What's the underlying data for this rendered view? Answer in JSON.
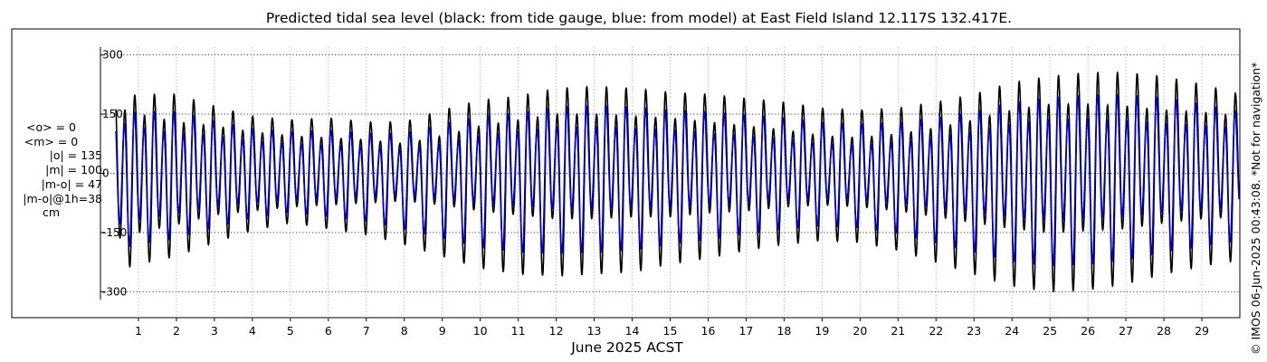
{
  "chart_data": {
    "type": "line",
    "title": "Predicted tidal sea level (black: from tide gauge, blue: from model) at East Field Island 12.117S 132.417E.",
    "xlabel": "June 2025 ACST",
    "ylabel": "",
    "xlim": [
      0,
      30
    ],
    "ylim": [
      -320,
      320
    ],
    "x_ticks": [
      "1",
      "2",
      "3",
      "4",
      "5",
      "6",
      "7",
      "8",
      "9",
      "10",
      "11",
      "12",
      "13",
      "14",
      "15",
      "16",
      "17",
      "18",
      "19",
      "20",
      "21",
      "22",
      "23",
      "24",
      "25",
      "26",
      "27",
      "28",
      "29"
    ],
    "y_ticks": [
      {
        "value": 300,
        "label": "300"
      },
      {
        "value": 150,
        "label": "150"
      },
      {
        "value": 0,
        "label": "0"
      },
      {
        "value": -150,
        "label": "-150"
      },
      {
        "value": -300,
        "label": "-300"
      }
    ],
    "grid": true,
    "series": [
      {
        "name": "from tide gauge",
        "color": "#000000"
      },
      {
        "name": "from model",
        "color": "#0000cc"
      }
    ],
    "gauge_envelope": {
      "days": [
        0.3,
        1,
        2,
        3,
        4,
        5,
        6,
        7,
        8,
        9,
        10,
        11,
        12,
        13,
        14,
        15,
        16,
        17,
        18,
        19,
        20,
        21,
        22,
        23,
        24,
        25,
        26,
        27,
        28,
        29,
        30
      ],
      "high_water_1": [
        185,
        200,
        200,
        170,
        145,
        135,
        140,
        130,
        130,
        160,
        185,
        195,
        215,
        220,
        215,
        205,
        200,
        190,
        180,
        165,
        160,
        165,
        180,
        200,
        230,
        245,
        255,
        255,
        245,
        225,
        200
      ],
      "high_water_2": [
        170,
        150,
        130,
        120,
        105,
        95,
        90,
        85,
        75,
        95,
        120,
        135,
        150,
        150,
        145,
        140,
        130,
        120,
        110,
        95,
        90,
        100,
        115,
        135,
        160,
        175,
        175,
        170,
        160,
        155,
        145
      ],
      "low_water_1": [
        -250,
        -230,
        -210,
        -175,
        -145,
        -125,
        -140,
        -155,
        -180,
        -210,
        -240,
        -255,
        -260,
        -255,
        -250,
        -230,
        -215,
        -195,
        -180,
        -170,
        -175,
        -195,
        -225,
        -255,
        -285,
        -300,
        -295,
        -280,
        -255,
        -235,
        -220
      ],
      "low_water_2": [
        -170,
        -150,
        -130,
        -105,
        -95,
        -85,
        -80,
        -75,
        -70,
        -80,
        -95,
        -105,
        -115,
        -115,
        -110,
        -110,
        -100,
        -95,
        -85,
        -80,
        -85,
        -95,
        -110,
        -125,
        -140,
        -150,
        -145,
        -140,
        -125,
        -115,
        -110
      ]
    },
    "model_scale": 0.78
  },
  "stats": {
    "mean_obs": "<o> = 0",
    "mean_model": "<m> = 0",
    "abs_obs": "|o| = 135",
    "abs_model": "|m| = 100",
    "abs_diff": "|m-o| = 47",
    "abs_diff_1h": "|m-o|@1h=38",
    "unit": "cm"
  },
  "copyright": "© IMOS 06-Jun-2025 00:43:08. *Not for navigation*"
}
